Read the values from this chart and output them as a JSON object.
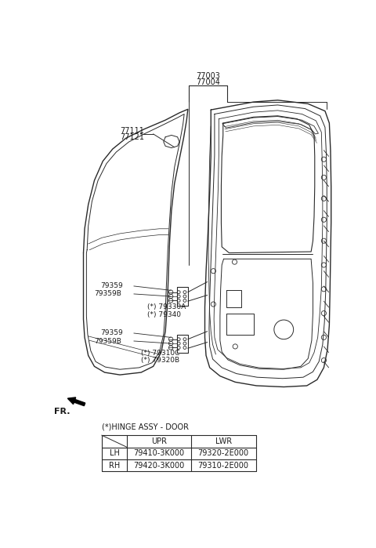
{
  "bg_color": "#ffffff",
  "title_label1": "77003",
  "title_label2": "77004",
  "label_77111": "77111",
  "label_77121": "77121",
  "label_79359_top": "79359",
  "label_79359B_top": "79359B",
  "label_79330A": "(*) 79330A",
  "label_79340": "(*) 79340",
  "label_79359_bot": "79359",
  "label_79359B_bot": "79359B",
  "label_79310C": "(*) 79310C",
  "label_79320B": "(*) 79320B",
  "fr_label": "FR.",
  "hinge_label": "(*)HINGE ASSY - DOOR",
  "table_header": [
    "",
    "UPR",
    "LWR"
  ],
  "table_rows": [
    [
      "LH",
      "79410-3K000",
      "79320-2E000"
    ],
    [
      "RH",
      "79420-3K000",
      "79310-2E000"
    ]
  ],
  "line_color": "#2a2a2a",
  "text_color": "#1a1a1a",
  "figsize": [
    4.8,
    6.99
  ],
  "dpi": 100
}
